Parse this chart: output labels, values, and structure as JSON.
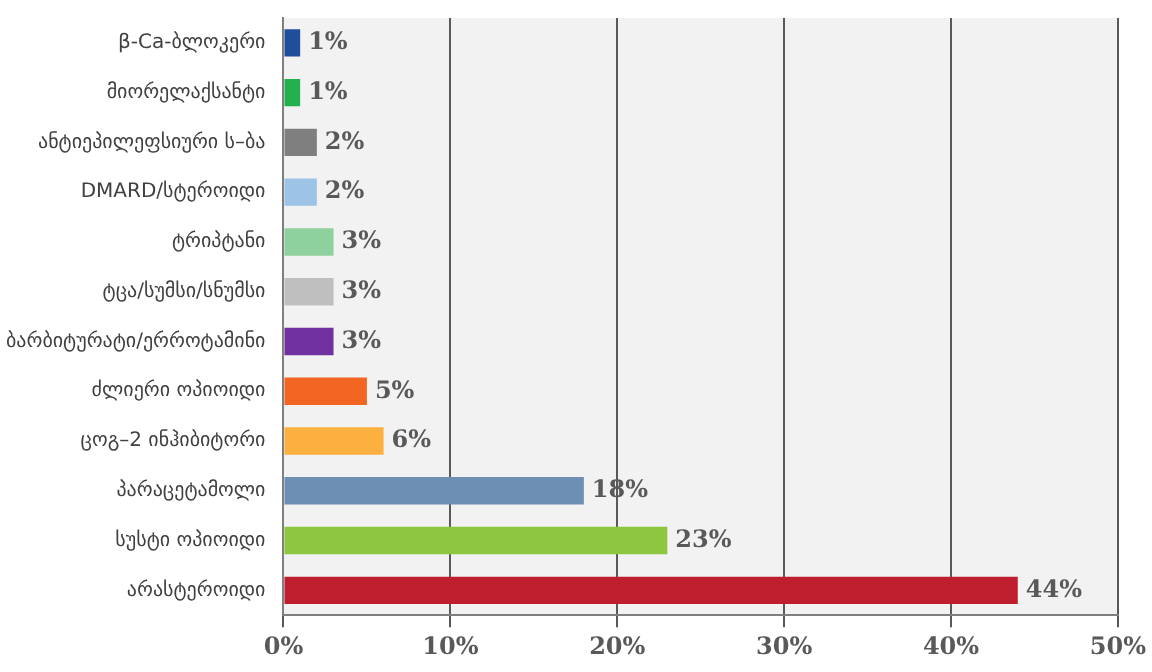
{
  "chart_data": {
    "type": "bar",
    "orientation": "horizontal",
    "categories": [
      "β-Ca-ბლოკერი",
      "მიორელაქსანტი",
      "ანტიეპილეფსიური ს–ბა",
      "DMARD/სტეროიდი",
      "ტრიპტანი",
      "ტცა/სუმსი/სნუმსი",
      "ბარბიტურატი/ერროტამინი",
      "ძლიერი ოპიოიდი",
      "ცოგ–2 ინჰიბიტორი",
      "პარაცეტამოლი",
      "სუსტი ოპიოიდი",
      "არასტეროიდი"
    ],
    "values": [
      1,
      1,
      2,
      2,
      3,
      3,
      3,
      5,
      6,
      18,
      23,
      44
    ],
    "colors": [
      "#1f4e9a",
      "#22b14c",
      "#7f7f7f",
      "#9dc3e6",
      "#8fd19e",
      "#bfbfbf",
      "#7030a0",
      "#f26522",
      "#fbb040",
      "#6d8fb3",
      "#8dc63f",
      "#be1e2d"
    ],
    "value_labels": [
      "1%",
      "1%",
      "2%",
      "2%",
      "3%",
      "3%",
      "3%",
      "5%",
      "6%",
      "18%",
      "23%",
      "44%"
    ],
    "xlim": [
      0,
      50
    ],
    "xticks": [
      {
        "value": 0,
        "label": "0%"
      },
      {
        "value": 10,
        "label": "10%"
      },
      {
        "value": 20,
        "label": "20%"
      },
      {
        "value": 30,
        "label": "30%"
      },
      {
        "value": 40,
        "label": "40%"
      },
      {
        "value": 50,
        "label": "50%"
      }
    ],
    "grid": "x",
    "legend": false
  }
}
